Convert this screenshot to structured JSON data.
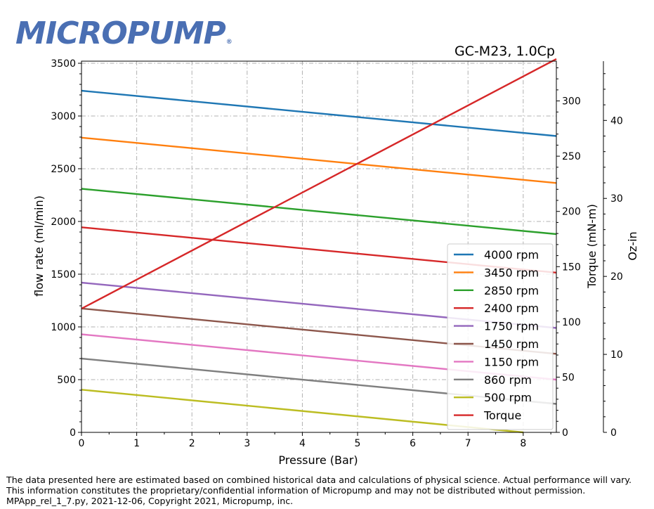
{
  "brand": {
    "logo_text": "MICROPUMP",
    "registered_mark": "®"
  },
  "footer": {
    "lines": [
      "The data presented here are estimated based on combined historical data and calculations of physical science.  Actual performance will vary.",
      "This information constitutes the proprietary/confidential information of Micropump and may not be distributed without permission.",
      "MPApp_rel_1_7.py, 2021-12-06, Copyright 2021, Micropump, inc."
    ]
  },
  "chart_data": {
    "type": "line",
    "title": "GC-M23,  1.0Cp",
    "xlabel": "Pressure (Bar)",
    "ylabel": "flow rate (ml/min)",
    "y2label": "Torque (mN-m)",
    "y3label": "Oz-in",
    "xlim": [
      0,
      8.6
    ],
    "ylim": [
      0,
      3520
    ],
    "y2lim": [
      0,
      336
    ],
    "y3lim": [
      0,
      47.6
    ],
    "xticks": [
      0,
      1,
      2,
      3,
      4,
      5,
      6,
      7,
      8
    ],
    "yticks": [
      0,
      500,
      1000,
      1500,
      2000,
      2500,
      3000,
      3500
    ],
    "y2ticks": [
      0,
      50,
      100,
      150,
      200,
      250,
      300
    ],
    "y3ticks": [
      0,
      10,
      20,
      30,
      40
    ],
    "grid": true,
    "legend_position": "lower-right",
    "series": [
      {
        "name": "4000 rpm",
        "color": "#1f77b4",
        "axis": "flow",
        "x": [
          0,
          8.6
        ],
        "y": [
          3240,
          2810
        ]
      },
      {
        "name": "3450 rpm",
        "color": "#ff7f0e",
        "axis": "flow",
        "x": [
          0,
          8.6
        ],
        "y": [
          2795,
          2365
        ]
      },
      {
        "name": "2850 rpm",
        "color": "#2ca02c",
        "axis": "flow",
        "x": [
          0,
          8.6
        ],
        "y": [
          2310,
          1880
        ]
      },
      {
        "name": "2400 rpm",
        "color": "#d62728",
        "axis": "flow",
        "x": [
          0,
          8.6
        ],
        "y": [
          1945,
          1515
        ]
      },
      {
        "name": "1750 rpm",
        "color": "#9467bd",
        "axis": "flow",
        "x": [
          0,
          8.6
        ],
        "y": [
          1420,
          990
        ]
      },
      {
        "name": "1450 rpm",
        "color": "#8c564b",
        "axis": "flow",
        "x": [
          0,
          8.6
        ],
        "y": [
          1175,
          745
        ]
      },
      {
        "name": "1150 rpm",
        "color": "#e377c2",
        "axis": "flow",
        "x": [
          0,
          8.6
        ],
        "y": [
          930,
          500
        ]
      },
      {
        "name": "860 rpm",
        "color": "#7f7f7f",
        "axis": "flow",
        "x": [
          0,
          8.6
        ],
        "y": [
          700,
          270
        ]
      },
      {
        "name": "500 rpm",
        "color": "#bcbd22",
        "axis": "flow",
        "x": [
          0,
          8.0
        ],
        "y": [
          405,
          0
        ]
      },
      {
        "name": "Torque",
        "color": "#d62728",
        "axis": "torque",
        "x": [
          0,
          8.6
        ],
        "y": [
          112,
          338
        ]
      }
    ]
  }
}
